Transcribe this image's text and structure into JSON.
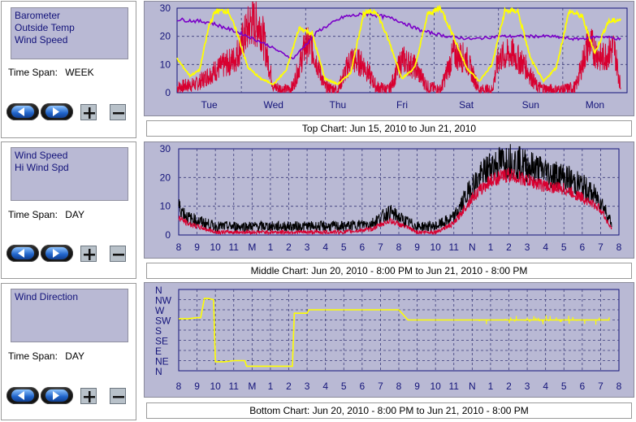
{
  "colors": {
    "plot_bg": "#b9b9d4",
    "axis_text": "#14147a",
    "barometer": "#7a00c8",
    "outside_temp": "#ffff00",
    "wind_speed": "#d80030",
    "hi_wind_speed": "#000000",
    "wind_direction": "#ffff00"
  },
  "panels": [
    {
      "list_items": [
        "Barometer",
        "Outside Temp",
        "Wind Speed"
      ],
      "time_span_label": "Time Span:",
      "time_span_value": "WEEK",
      "caption": "Top Chart:  Jun 15, 2010  to  Jun 21, 2010"
    },
    {
      "list_items": [
        "Wind Speed",
        "Hi Wind Spd"
      ],
      "time_span_label": "Time Span:",
      "time_span_value": "DAY",
      "caption": "Middle Chart:  Jun 20, 2010 - 8:00 PM  to  Jun 21, 2010 - 8:00 PM"
    },
    {
      "list_items": [
        "Wind Direction"
      ],
      "time_span_label": "Time Span:",
      "time_span_value": "DAY",
      "caption": "Bottom Chart:  Jun 20, 2010 - 8:00 PM  to  Jun 21, 2010 - 8:00 PM"
    }
  ],
  "buttons": {
    "back_icon": "left-arrow-icon",
    "forward_icon": "right-arrow-icon",
    "zoom_in_icon": "plus-icon",
    "zoom_out_icon": "minus-icon"
  },
  "chart_data": [
    {
      "type": "line",
      "x_ticks": [
        "Tue",
        "Wed",
        "Thu",
        "Fri",
        "Sat",
        "Sun",
        "Mon"
      ],
      "y_ticks": [
        "0",
        "10",
        "20",
        "30"
      ],
      "ylim": [
        0,
        30
      ],
      "grid": true,
      "series": [
        {
          "name": "Barometer",
          "x_days": [
            0,
            0.5,
            1,
            1.4,
            1.8,
            2.2,
            2.6,
            3.0,
            3.4,
            3.8,
            4.2,
            4.6,
            5.0,
            5.4,
            5.8,
            6.2,
            6.6,
            6.9
          ],
          "values": [
            26,
            25,
            21,
            17,
            12,
            22,
            27,
            28,
            26,
            22,
            20,
            19,
            20,
            20,
            20,
            19,
            20,
            19
          ]
        },
        {
          "name": "Outside Temp",
          "x_days": [
            0,
            0.2,
            0.35,
            0.5,
            0.6,
            0.8,
            0.95,
            1.1,
            1.3,
            1.5,
            1.7,
            1.9,
            2.1,
            2.3,
            2.5,
            2.7,
            2.9,
            3.1,
            3.3,
            3.5,
            3.7,
            3.9,
            4.1,
            4.3,
            4.5,
            4.7,
            4.9,
            5.1,
            5.3,
            5.5,
            5.7,
            5.9,
            6.1,
            6.3,
            6.5,
            6.7,
            6.9
          ],
          "values": [
            12,
            6,
            8,
            24,
            29,
            29,
            20,
            9,
            5,
            3,
            8,
            23,
            21,
            5,
            3,
            7,
            28,
            29,
            18,
            5,
            9,
            28,
            30,
            20,
            9,
            4,
            10,
            29,
            29,
            12,
            4,
            9,
            29,
            27,
            14,
            25,
            26
          ]
        },
        {
          "name": "Wind Speed",
          "x_days": [
            0,
            0.3,
            0.6,
            0.9,
            1.05,
            1.15,
            1.3,
            1.5,
            1.7,
            1.8,
            2.0,
            2.1,
            2.3,
            2.5,
            2.7,
            2.9,
            3.1,
            3.3,
            3.5,
            3.7,
            3.9,
            4.1,
            4.3,
            4.5,
            4.7,
            4.9,
            5.0,
            5.2,
            5.4,
            5.6,
            5.8,
            6.0,
            6.2,
            6.4,
            6.6,
            6.8,
            6.9
          ],
          "values": [
            2,
            3,
            8,
            12,
            20,
            25,
            24,
            2,
            1,
            2,
            17,
            16,
            2,
            1,
            12,
            10,
            2,
            1,
            12,
            9,
            2,
            1,
            14,
            12,
            1,
            1,
            12,
            14,
            10,
            2,
            1,
            1,
            2,
            18,
            12,
            16,
            2
          ]
        }
      ]
    },
    {
      "type": "line",
      "x_ticks": [
        "8",
        "9",
        "10",
        "11",
        "M",
        "1",
        "2",
        "3",
        "4",
        "5",
        "6",
        "7",
        "8",
        "9",
        "10",
        "11",
        "N",
        "1",
        "2",
        "3",
        "4",
        "5",
        "6",
        "7",
        "8"
      ],
      "y_ticks": [
        "0",
        "10",
        "20",
        "30"
      ],
      "ylim": [
        0,
        30
      ],
      "grid": true,
      "series": [
        {
          "name": "Wind Speed",
          "x_hours": [
            0,
            0.5,
            1,
            2,
            3,
            5,
            7,
            9,
            10.5,
            11.5,
            12.3,
            13,
            14,
            15,
            16,
            17,
            18,
            19,
            20,
            21,
            22,
            23,
            23.6
          ],
          "values": [
            6,
            4,
            3,
            1,
            1,
            1,
            1,
            1,
            2,
            5,
            3,
            1,
            1,
            4,
            13,
            19,
            21,
            19,
            17,
            16,
            13,
            9,
            2
          ]
        },
        {
          "name": "Hi Wind Spd",
          "x_hours": [
            0,
            0.5,
            1,
            2,
            3,
            5,
            7,
            9,
            10.5,
            11.5,
            12.3,
            13,
            14,
            15,
            16,
            17,
            18,
            19,
            20,
            21,
            22,
            23,
            23.6
          ],
          "values": [
            10,
            6,
            5,
            3,
            3,
            3,
            3,
            3,
            4,
            8,
            5,
            3,
            3,
            6,
            17,
            24,
            26,
            24,
            22,
            20,
            17,
            12,
            4
          ]
        }
      ]
    },
    {
      "type": "line",
      "x_ticks": [
        "8",
        "9",
        "10",
        "11",
        "M",
        "1",
        "2",
        "3",
        "4",
        "5",
        "6",
        "7",
        "8",
        "9",
        "10",
        "11",
        "N",
        "1",
        "2",
        "3",
        "4",
        "5",
        "6",
        "7",
        "8"
      ],
      "y_ticks": [
        "N",
        "NW",
        "W",
        "SW",
        "S",
        "SE",
        "E",
        "NE",
        "N"
      ],
      "ylim_degrees": [
        0,
        360
      ],
      "grid": true,
      "series": [
        {
          "name": "Wind Direction",
          "x_hours": [
            0,
            0.5,
            1.0,
            1.2,
            1.4,
            1.6,
            1.9,
            2.0,
            2.5,
            3.0,
            3.6,
            3.7,
            4.0,
            5.0,
            5.5,
            6.2,
            6.3,
            6.9,
            7.0,
            7.1,
            7.6,
            8.0,
            10.0,
            11.0,
            12.0,
            12.5,
            12.9,
            13.0,
            14.0,
            15.0,
            16.0,
            17.0,
            18.0,
            19.0,
            20.0,
            21.0,
            22.0,
            23.0,
            23.5
          ],
          "values": [
            230,
            230,
            235,
            235,
            320,
            320,
            315,
            40,
            40,
            45,
            45,
            20,
            20,
            20,
            20,
            20,
            255,
            255,
            255,
            270,
            270,
            270,
            270,
            270,
            270,
            225,
            225,
            225,
            225,
            225,
            225,
            225,
            225,
            225,
            225,
            225,
            225,
            225,
            225
          ]
        }
      ]
    }
  ]
}
